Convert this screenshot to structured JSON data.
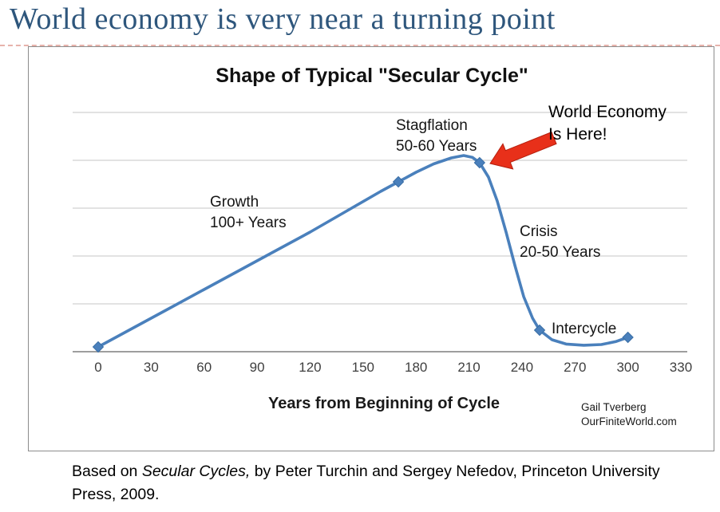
{
  "slide": {
    "title": "World economy is very near a turning point",
    "caption": {
      "prefix": "Based on ",
      "italic": "Secular Cycles,",
      "rest": " by Peter Turchin and Sergey Nefedov, Princeton University Press, 2009."
    },
    "credit": {
      "line1": "Gail Tverberg",
      "line2": "OurFiniteWorld.com"
    }
  },
  "chart_data": {
    "type": "line",
    "title": "Shape of Typical \"Secular Cycle\"",
    "xlabel": "Years from Beginning of Cycle",
    "ylabel": "",
    "xlim": [
      -15,
      335
    ],
    "ylim": [
      0,
      10
    ],
    "x_ticks": [
      0,
      30,
      60,
      90,
      120,
      150,
      180,
      210,
      240,
      270,
      300,
      330
    ],
    "gridline_values": [
      0,
      2,
      4,
      6,
      8,
      10
    ],
    "grid": "horizontal-only",
    "legend": "none",
    "line_color": "#4a80bc",
    "marker": "diamond",
    "series": [
      {
        "name": "Typical Secular Cycle",
        "points": [
          [
            0,
            0.2
          ],
          [
            20,
            1.0
          ],
          [
            40,
            1.8
          ],
          [
            60,
            2.6
          ],
          [
            80,
            3.4
          ],
          [
            100,
            4.2
          ],
          [
            120,
            5.0
          ],
          [
            140,
            5.85
          ],
          [
            160,
            6.7
          ],
          [
            170,
            7.1
          ],
          [
            180,
            7.5
          ],
          [
            190,
            7.85
          ],
          [
            200,
            8.1
          ],
          [
            207,
            8.2
          ],
          [
            212,
            8.12
          ],
          [
            216,
            7.9
          ],
          [
            221,
            7.3
          ],
          [
            226,
            6.3
          ],
          [
            231,
            5.0
          ],
          [
            236,
            3.6
          ],
          [
            241,
            2.3
          ],
          [
            246,
            1.4
          ],
          [
            250,
            0.9
          ],
          [
            257,
            0.5
          ],
          [
            265,
            0.32
          ],
          [
            275,
            0.27
          ],
          [
            285,
            0.3
          ],
          [
            293,
            0.42
          ],
          [
            300,
            0.6
          ]
        ],
        "marker_points": [
          [
            0,
            0.2
          ],
          [
            170,
            7.1
          ],
          [
            216,
            7.9
          ],
          [
            250,
            0.9
          ],
          [
            300,
            0.6
          ]
        ]
      }
    ],
    "annotations": [
      {
        "id": "growth",
        "lines": [
          "Growth",
          "100+ Years"
        ],
        "anchor_x": 65,
        "anchor_y": 4.8
      },
      {
        "id": "stagflation",
        "lines": [
          "Stagflation",
          "50-60 Years"
        ],
        "anchor_x": 175,
        "anchor_y": 9.2
      },
      {
        "id": "world_economy_is_here",
        "lines": [
          "World Economy",
          "Is Here!"
        ],
        "anchor_x": 255,
        "anchor_y": 9.6
      },
      {
        "id": "crisis",
        "lines": [
          "Crisis",
          "20-50 Years"
        ],
        "anchor_x": 250,
        "anchor_y": 4.5
      },
      {
        "id": "intercycle",
        "lines": [
          "Intercycle"
        ],
        "anchor_x": 265,
        "anchor_y": 1.1
      }
    ],
    "arrow": {
      "color": "#e8301a",
      "points_at": "peak marker (~216, 7.9)"
    }
  }
}
